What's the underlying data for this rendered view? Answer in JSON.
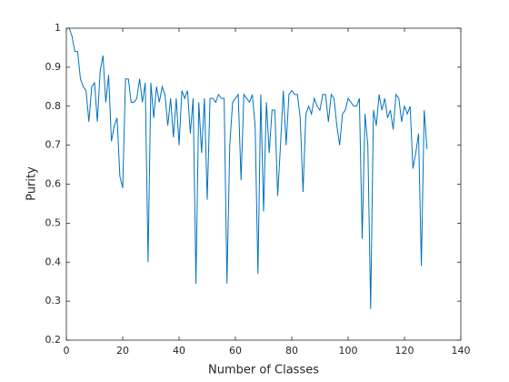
{
  "chart_data": {
    "type": "line",
    "xlabel": "Number of Classes",
    "ylabel": "Purity",
    "x": [
      1,
      2,
      3,
      4,
      5,
      6,
      7,
      8,
      9,
      10,
      11,
      12,
      13,
      14,
      15,
      16,
      17,
      18,
      19,
      20,
      21,
      22,
      23,
      24,
      25,
      26,
      27,
      28,
      29,
      30,
      31,
      32,
      33,
      34,
      35,
      36,
      37,
      38,
      39,
      40,
      41,
      42,
      43,
      44,
      45,
      46,
      47,
      48,
      49,
      50,
      51,
      52,
      53,
      54,
      55,
      56,
      57,
      58,
      59,
      60,
      61,
      62,
      63,
      64,
      65,
      66,
      67,
      68,
      69,
      70,
      71,
      72,
      73,
      74,
      75,
      76,
      77,
      78,
      79,
      80,
      81,
      82,
      83,
      84,
      85,
      86,
      87,
      88,
      89,
      90,
      91,
      92,
      93,
      94,
      95,
      96,
      97,
      98,
      99,
      100,
      101,
      102,
      103,
      104,
      105,
      106,
      107,
      108,
      109,
      110,
      111,
      112,
      113,
      114,
      115,
      116,
      117,
      118,
      119,
      120,
      121,
      122,
      123,
      124,
      125,
      126,
      127,
      128
    ],
    "values": [
      1.0,
      0.98,
      0.94,
      0.94,
      0.87,
      0.85,
      0.84,
      0.76,
      0.85,
      0.86,
      0.76,
      0.89,
      0.93,
      0.81,
      0.88,
      0.71,
      0.75,
      0.77,
      0.62,
      0.59,
      0.87,
      0.87,
      0.81,
      0.81,
      0.82,
      0.87,
      0.81,
      0.86,
      0.4,
      0.86,
      0.77,
      0.85,
      0.81,
      0.85,
      0.83,
      0.75,
      0.82,
      0.72,
      0.82,
      0.7,
      0.84,
      0.82,
      0.84,
      0.73,
      0.82,
      0.345,
      0.81,
      0.68,
      0.82,
      0.56,
      0.82,
      0.82,
      0.81,
      0.83,
      0.82,
      0.82,
      0.345,
      0.7,
      0.81,
      0.82,
      0.83,
      0.61,
      0.83,
      0.82,
      0.81,
      0.83,
      0.75,
      0.37,
      0.83,
      0.53,
      0.81,
      0.68,
      0.79,
      0.79,
      0.57,
      0.7,
      0.84,
      0.7,
      0.83,
      0.84,
      0.83,
      0.83,
      0.77,
      0.58,
      0.78,
      0.8,
      0.78,
      0.82,
      0.8,
      0.79,
      0.83,
      0.83,
      0.76,
      0.83,
      0.82,
      0.75,
      0.7,
      0.78,
      0.79,
      0.82,
      0.81,
      0.8,
      0.8,
      0.82,
      0.46,
      0.78,
      0.7,
      0.28,
      0.79,
      0.75,
      0.83,
      0.79,
      0.82,
      0.77,
      0.79,
      0.74,
      0.83,
      0.82,
      0.76,
      0.8,
      0.78,
      0.8,
      0.64,
      0.68,
      0.73,
      0.39,
      0.79,
      0.69
    ],
    "color": "#0072bd",
    "xlim": [
      0,
      140
    ],
    "xticks": [
      0,
      20,
      40,
      60,
      80,
      100,
      120,
      140
    ],
    "ylim": [
      0.2,
      1
    ],
    "yticks": [
      0.2,
      0.3,
      0.4,
      0.5,
      0.6,
      0.7,
      0.8,
      0.9,
      1
    ]
  }
}
